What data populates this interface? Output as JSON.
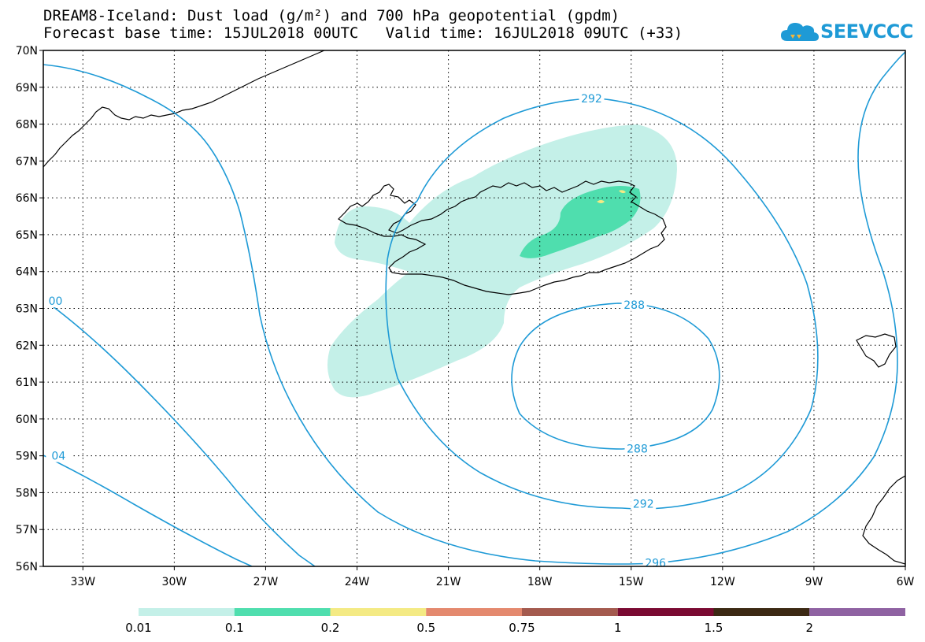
{
  "title": {
    "line1": "DREAM8-Iceland: Dust load (g/m²) and 700 hPa geopotential (gpdm)",
    "line2": "Forecast base time: 15JUL2018 00UTC   Valid time: 16JUL2018 09UTC (+33)"
  },
  "logo": {
    "text": "SEEVCCC",
    "icon": "cloud-icon",
    "color": "#1e9ad6"
  },
  "map": {
    "lat_range": [
      56,
      70
    ],
    "lon_range": [
      -34.3,
      -6
    ],
    "lat_labels": [
      "70N",
      "69N",
      "68N",
      "67N",
      "66N",
      "65N",
      "64N",
      "63N",
      "62N",
      "61N",
      "60N",
      "59N",
      "58N",
      "57N",
      "56N"
    ],
    "lat_values": [
      70,
      69,
      68,
      67,
      66,
      65,
      64,
      63,
      62,
      61,
      60,
      59,
      58,
      57,
      56
    ],
    "lon_labels": [
      "33W",
      "30W",
      "27W",
      "24W",
      "21W",
      "18W",
      "15W",
      "12W",
      "9W",
      "6W"
    ],
    "lon_values": [
      -33,
      -30,
      -27,
      -24,
      -21,
      -18,
      -15,
      -12,
      -9,
      -6
    ],
    "gridlines": "dotted",
    "contour_color": "#1e9ad6",
    "contour_labels": [
      {
        "text": "292",
        "lon": -16.3,
        "lat": 68.7
      },
      {
        "text": "288",
        "lon": -14.9,
        "lat": 63.1
      },
      {
        "text": "288",
        "lon": -14.8,
        "lat": 59.2
      },
      {
        "text": "292",
        "lon": -14.6,
        "lat": 57.7
      },
      {
        "text": "296",
        "lon": -14.2,
        "lat": 56.1
      },
      {
        "text": "00",
        "lon": -33.9,
        "lat": 63.2
      },
      {
        "text": "04",
        "lon": -33.8,
        "lat": 59.0
      }
    ]
  },
  "legend": {
    "colors": [
      "#c4f0e8",
      "#4fdeae",
      "#f4ea84",
      "#e4896e",
      "#a45a4e",
      "#7a0a32",
      "#3c2914",
      "#8f62a2"
    ],
    "labels": [
      "0.01",
      "0.1",
      "0.2",
      "0.5",
      "0.75",
      "1",
      "1.5",
      "2"
    ]
  }
}
